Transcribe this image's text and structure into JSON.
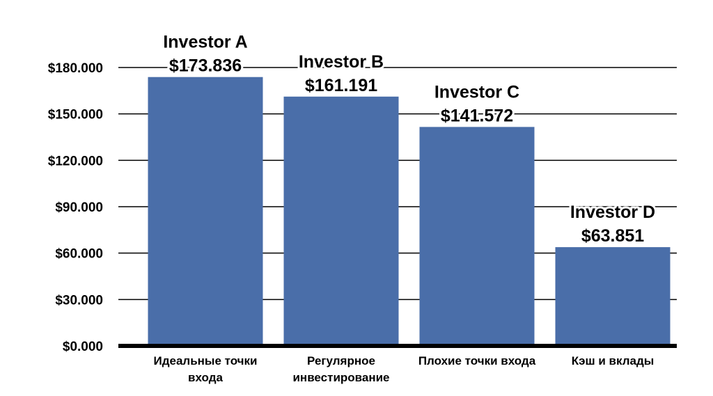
{
  "chart_data": {
    "type": "bar",
    "categories": [
      [
        "Идеальные точки",
        "входа"
      ],
      [
        "Регулярное",
        "инвестирование"
      ],
      [
        "Плохие точки входа"
      ],
      [
        "Кэш и вклады"
      ]
    ],
    "bar_names": [
      "Investor A",
      "Investor B",
      "Investor C",
      "Investor D"
    ],
    "values": [
      173836,
      161191,
      141572,
      63851
    ],
    "value_labels": [
      "$173.836",
      "$161.191",
      "$141.572",
      "$63.851"
    ],
    "y_ticks": [
      {
        "value": 0,
        "label": "$0.000"
      },
      {
        "value": 30000,
        "label": "$30.000"
      },
      {
        "value": 60000,
        "label": "$60.000"
      },
      {
        "value": 90000,
        "label": "$90.000"
      },
      {
        "value": 120000,
        "label": "$120.000"
      },
      {
        "value": 150000,
        "label": "$150.000"
      },
      {
        "value": 180000,
        "label": "$180.000"
      }
    ],
    "ylim": [
      0,
      180000
    ],
    "grid": true,
    "bar_color": "#4a6ea9",
    "grid_color": "#000000"
  }
}
